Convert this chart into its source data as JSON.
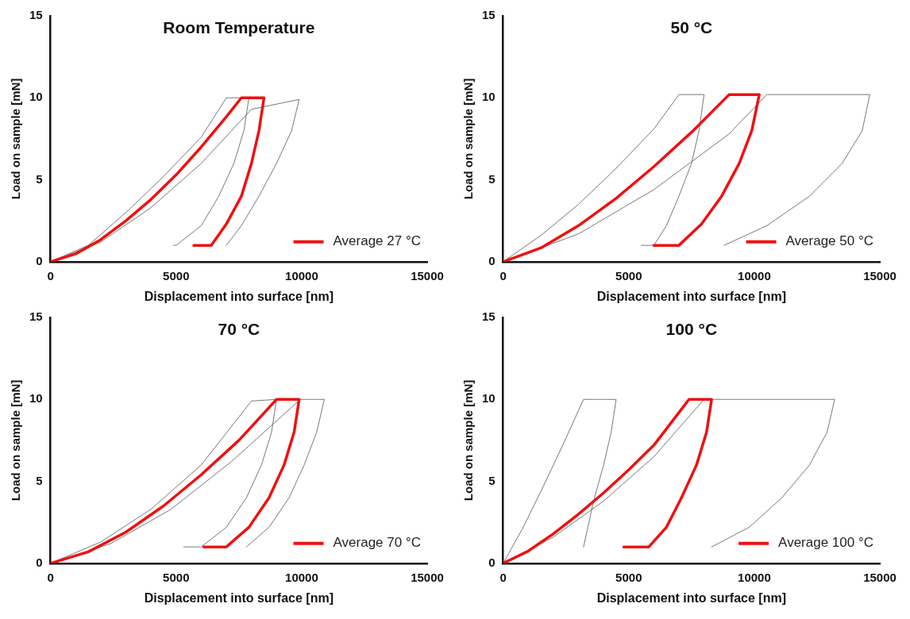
{
  "chart_data": [
    {
      "type": "line",
      "title": "Room Temperature",
      "xlabel": "Displacement into surface [nm]",
      "ylabel": "Load on sample [mN]",
      "xlim": [
        0,
        15000
      ],
      "ylim": [
        0,
        15
      ],
      "xticks": [
        0,
        5000,
        10000,
        15000
      ],
      "yticks": [
        0,
        5,
        10,
        15
      ],
      "legend": "bottom right",
      "marker": "none",
      "series": [
        {
          "color": "#555555",
          "x": [
            0,
            1500,
            3000,
            4500,
            6000,
            7000,
            7900,
            7700,
            7300,
            6700,
            6000,
            5000,
            4900
          ],
          "values": [
            0,
            1,
            3,
            5.2,
            7.6,
            10,
            10,
            8,
            6,
            4,
            2.2,
            1,
            1
          ]
        },
        {
          "color": "#555555",
          "x": [
            0,
            2000,
            4000,
            6000,
            8000,
            9900,
            9600,
            9000,
            8300,
            7600,
            7000
          ],
          "values": [
            0,
            1.2,
            3.3,
            6,
            9.3,
            9.9,
            8,
            6,
            4,
            2.2,
            1
          ]
        },
        {
          "name": "Average 27 °C",
          "color": "#ee1111",
          "x": [
            0,
            1000,
            2000,
            3000,
            4000,
            5000,
            6000,
            7000,
            7600,
            8500,
            8300,
            8000,
            7600,
            7000,
            6400,
            5700
          ],
          "values": [
            0,
            0.48,
            1.35,
            2.5,
            3.8,
            5.3,
            7,
            8.85,
            10,
            10,
            8,
            6,
            4,
            2.3,
            1,
            1
          ]
        }
      ]
    },
    {
      "type": "line",
      "title": "50 °C",
      "xlabel": "Displacement into surface [nm]",
      "ylabel": "Load on sample [mN]",
      "xlim": [
        0,
        15000
      ],
      "ylim": [
        0,
        15
      ],
      "xticks": [
        0,
        5000,
        10000,
        15000
      ],
      "yticks": [
        0,
        5,
        10,
        15
      ],
      "legend": "bottom right",
      "marker": "none",
      "series": [
        {
          "color": "#555555",
          "x": [
            0,
            1500,
            3000,
            4500,
            6000,
            7000,
            8000,
            7800,
            7500,
            7000,
            6500,
            6000,
            5500
          ],
          "values": [
            0,
            1.6,
            3.5,
            5.7,
            8.1,
            10.2,
            10.2,
            8,
            6,
            4,
            2.2,
            1,
            1
          ]
        },
        {
          "color": "#555555",
          "x": [
            0,
            3000,
            6000,
            9000,
            10500,
            14600,
            14300,
            13500,
            12200,
            10500,
            8800
          ],
          "values": [
            0,
            1.7,
            4.4,
            7.8,
            10.2,
            10.2,
            8,
            6,
            4,
            2.2,
            1
          ]
        },
        {
          "name": "Average 50 °C",
          "color": "#ee1111",
          "x": [
            0,
            1500,
            3000,
            4500,
            6000,
            7500,
            9000,
            10200,
            9900,
            9400,
            8700,
            7900,
            7000,
            6000
          ],
          "values": [
            0,
            0.84,
            2.2,
            3.87,
            5.8,
            7.9,
            10.2,
            10.2,
            8,
            6,
            4,
            2.3,
            1,
            1
          ]
        }
      ]
    },
    {
      "type": "line",
      "title": "70 °C",
      "xlabel": "Displacement into surface [nm]",
      "ylabel": "Load on sample [mN]",
      "xlim": [
        0,
        15000
      ],
      "ylim": [
        0,
        15
      ],
      "xticks": [
        0,
        5000,
        10000,
        15000
      ],
      "yticks": [
        0,
        5,
        10,
        15
      ],
      "legend": "bottom right",
      "marker": "none",
      "series": [
        {
          "color": "#555555",
          "x": [
            0,
            2000,
            4000,
            6000,
            8000,
            9000,
            8800,
            8400,
            7800,
            7000,
            6000,
            5300
          ],
          "values": [
            0,
            1.3,
            3.3,
            6,
            9.9,
            10,
            8,
            6,
            4,
            2.2,
            1,
            1
          ]
        },
        {
          "color": "#555555",
          "x": [
            0,
            2400,
            4800,
            7200,
            9950,
            10900,
            10600,
            10100,
            9500,
            8700,
            7800
          ],
          "values": [
            0,
            1.2,
            3.3,
            6.2,
            10,
            10,
            8,
            6,
            4,
            2.2,
            1
          ]
        },
        {
          "name": "Average 70 °C",
          "color": "#ee1111",
          "x": [
            0,
            1500,
            3000,
            4500,
            6000,
            7500,
            9000,
            9900,
            9700,
            9300,
            8700,
            7900,
            7000,
            6100
          ],
          "values": [
            0,
            0.7,
            1.9,
            3.5,
            5.4,
            7.5,
            10,
            10,
            8,
            6,
            4,
            2.2,
            1,
            1
          ]
        }
      ]
    },
    {
      "type": "line",
      "title": "100 °C",
      "xlabel": "Displacement into surface [nm]",
      "ylabel": "Load on sample [mN]",
      "xlim": [
        0,
        15000
      ],
      "ylim": [
        0,
        15
      ],
      "xticks": [
        0,
        5000,
        10000,
        15000
      ],
      "yticks": [
        0,
        5,
        10,
        15
      ],
      "legend": "bottom right",
      "marker": "none",
      "series": [
        {
          "color": "#555555",
          "x": [
            0,
            800,
            1600,
            2400,
            3200,
            4500,
            4300,
            4000,
            3600,
            3200
          ],
          "values": [
            0,
            2.2,
            4.7,
            7.3,
            10,
            10,
            8,
            6,
            3.8,
            1
          ]
        },
        {
          "color": "#555555",
          "x": [
            0,
            2000,
            4000,
            6000,
            8000,
            13200,
            12900,
            12200,
            11100,
            9800,
            8300
          ],
          "values": [
            0,
            1.6,
            3.8,
            6.5,
            10,
            10,
            8,
            6,
            4,
            2.2,
            1
          ]
        },
        {
          "name": "Average 100 °C",
          "color": "#ee1111",
          "x": [
            0,
            1000,
            2000,
            3000,
            4000,
            5000,
            6000,
            7400,
            8300,
            8100,
            7700,
            7100,
            6500,
            5800,
            4800
          ],
          "values": [
            0,
            0.75,
            1.8,
            3,
            4.3,
            5.7,
            7.2,
            10,
            10,
            8,
            6,
            4,
            2.2,
            1,
            1
          ]
        }
      ]
    }
  ]
}
